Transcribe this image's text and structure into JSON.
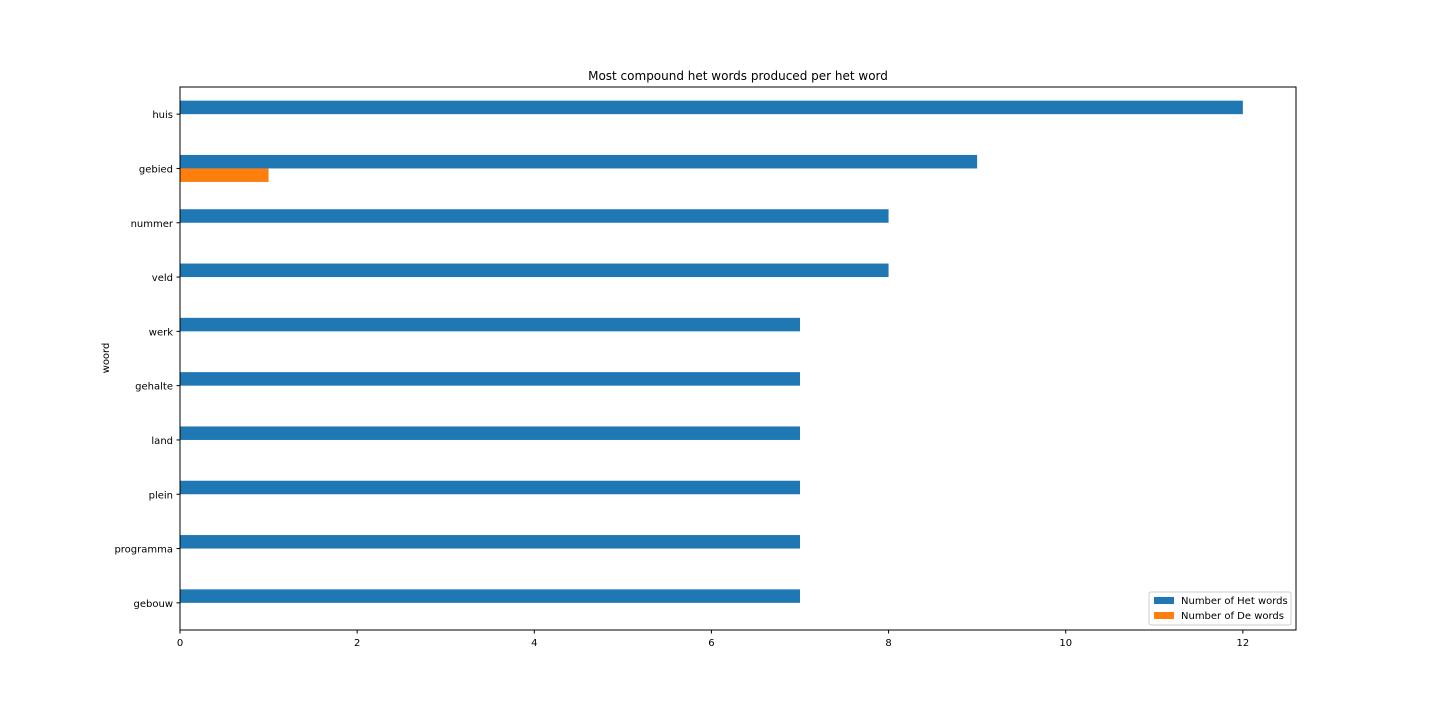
{
  "chart_data": {
    "type": "bar",
    "orientation": "horizontal",
    "title": "Most compound het words produced per het word",
    "xlabel": "",
    "ylabel": "woord",
    "categories": [
      "huis",
      "gebied",
      "nummer",
      "veld",
      "werk",
      "gehalte",
      "land",
      "plein",
      "programma",
      "gebouw"
    ],
    "series": [
      {
        "name": "Number of Het words",
        "color": "#1f77b4",
        "values": [
          12,
          9,
          8,
          8,
          7,
          7,
          7,
          7,
          7,
          7
        ]
      },
      {
        "name": "Number of De words",
        "color": "#ff7f0e",
        "values": [
          0,
          1,
          0,
          0,
          0,
          0,
          0,
          0,
          0,
          0
        ]
      }
    ],
    "xlim": [
      0,
      12.6
    ],
    "xticks": [
      0,
      2,
      4,
      6,
      8,
      10,
      12
    ],
    "grid": false,
    "legend_position": "bottom-right"
  }
}
